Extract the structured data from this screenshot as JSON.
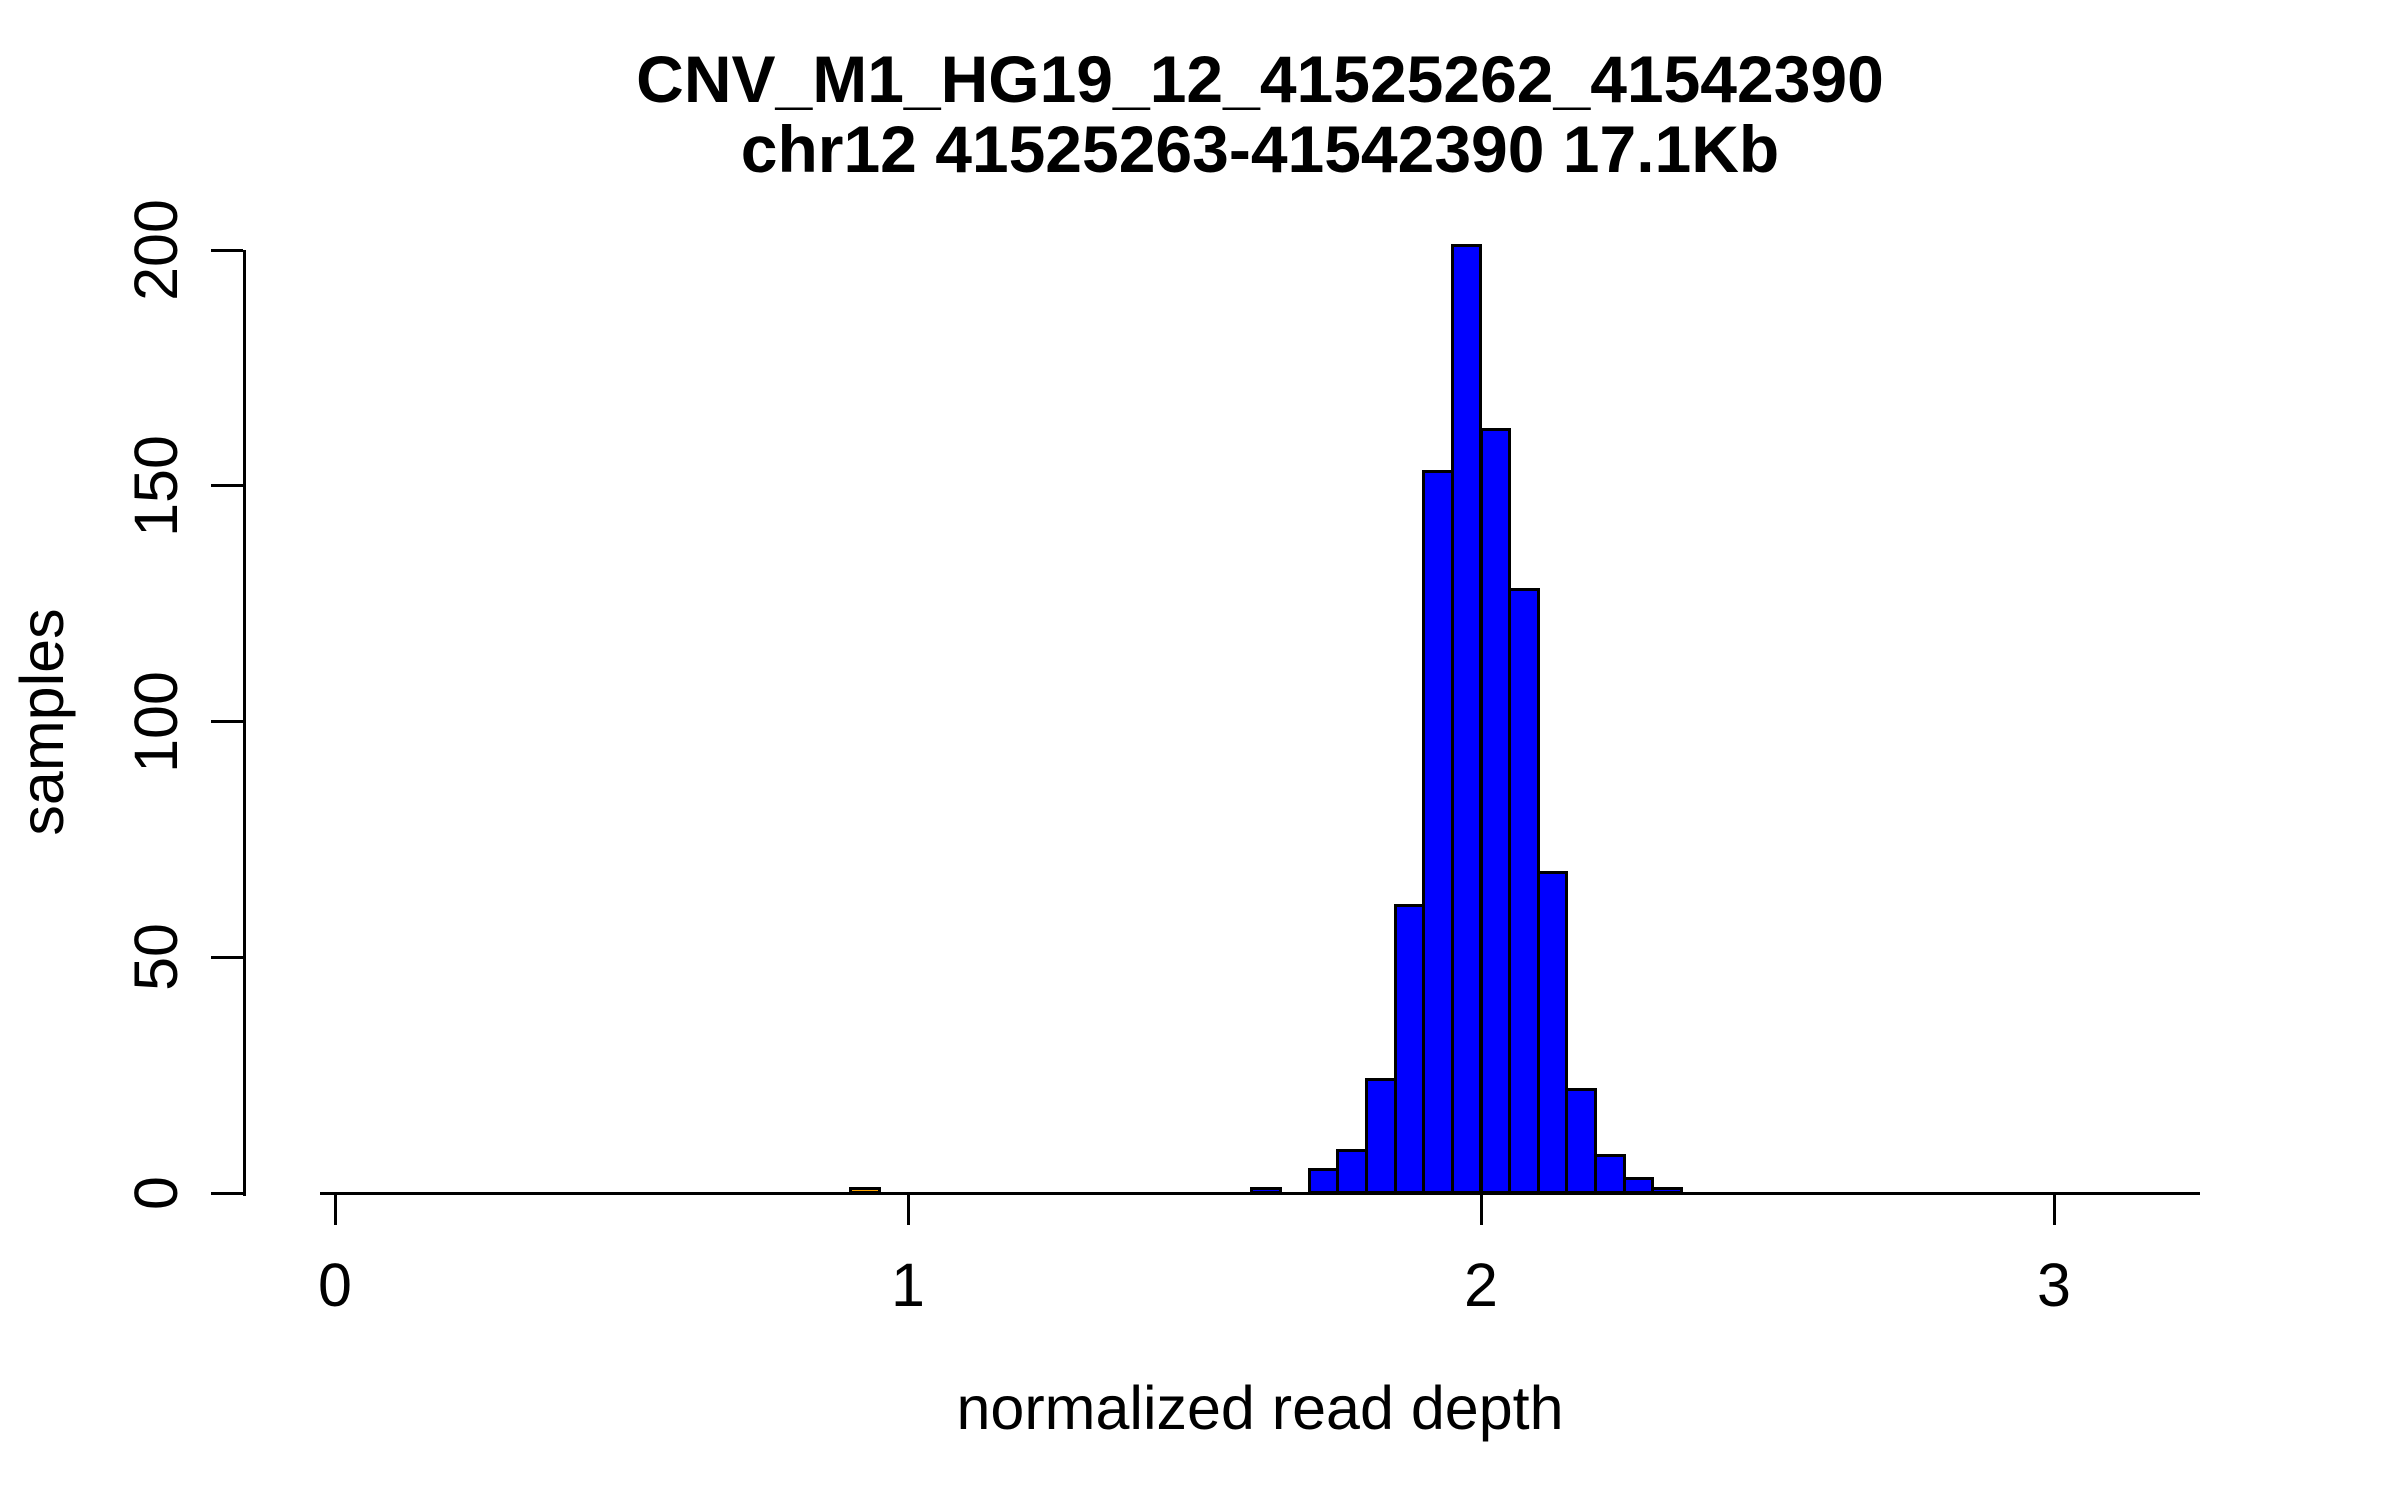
{
  "title": {
    "line1": "CNV_M1_HG19_12_41525262_41542390",
    "line2": "chr12 41525263-41542390 17.1Kb"
  },
  "chart_data": {
    "type": "bar",
    "subtype": "histogram",
    "title": "CNV_M1_HG19_12_41525262_41542390",
    "subtitle": "chr12 41525263-41542390 17.1Kb",
    "xlabel": "normalized read depth",
    "ylabel": "samples",
    "xlim": [
      -0.03,
      3.26
    ],
    "ylim": [
      0,
      201
    ],
    "grid": false,
    "legend": false,
    "x_ticks": [
      "0",
      "1",
      "2",
      "3"
    ],
    "x_tick_values": [
      0,
      1,
      2,
      3
    ],
    "y_ticks": [
      "0",
      "50",
      "100",
      "150",
      "200"
    ],
    "y_tick_values": [
      0,
      50,
      100,
      150,
      200
    ],
    "bin_width": 0.05,
    "default_bar_color": "#0000FF",
    "bar_border_color": "#000000",
    "highlight_color": "#FFA500",
    "bars": [
      {
        "x": 0.9,
        "count": 1,
        "color": "#FFA500"
      },
      {
        "x": 1.6,
        "count": 1
      },
      {
        "x": 1.7,
        "count": 5
      },
      {
        "x": 1.75,
        "count": 9
      },
      {
        "x": 1.8,
        "count": 24
      },
      {
        "x": 1.85,
        "count": 61
      },
      {
        "x": 1.9,
        "count": 153
      },
      {
        "x": 1.95,
        "count": 201
      },
      {
        "x": 2.0,
        "count": 162
      },
      {
        "x": 2.05,
        "count": 128
      },
      {
        "x": 2.1,
        "count": 68
      },
      {
        "x": 2.15,
        "count": 22
      },
      {
        "x": 2.2,
        "count": 8
      },
      {
        "x": 2.25,
        "count": 3
      },
      {
        "x": 2.3,
        "count": 1
      }
    ]
  }
}
